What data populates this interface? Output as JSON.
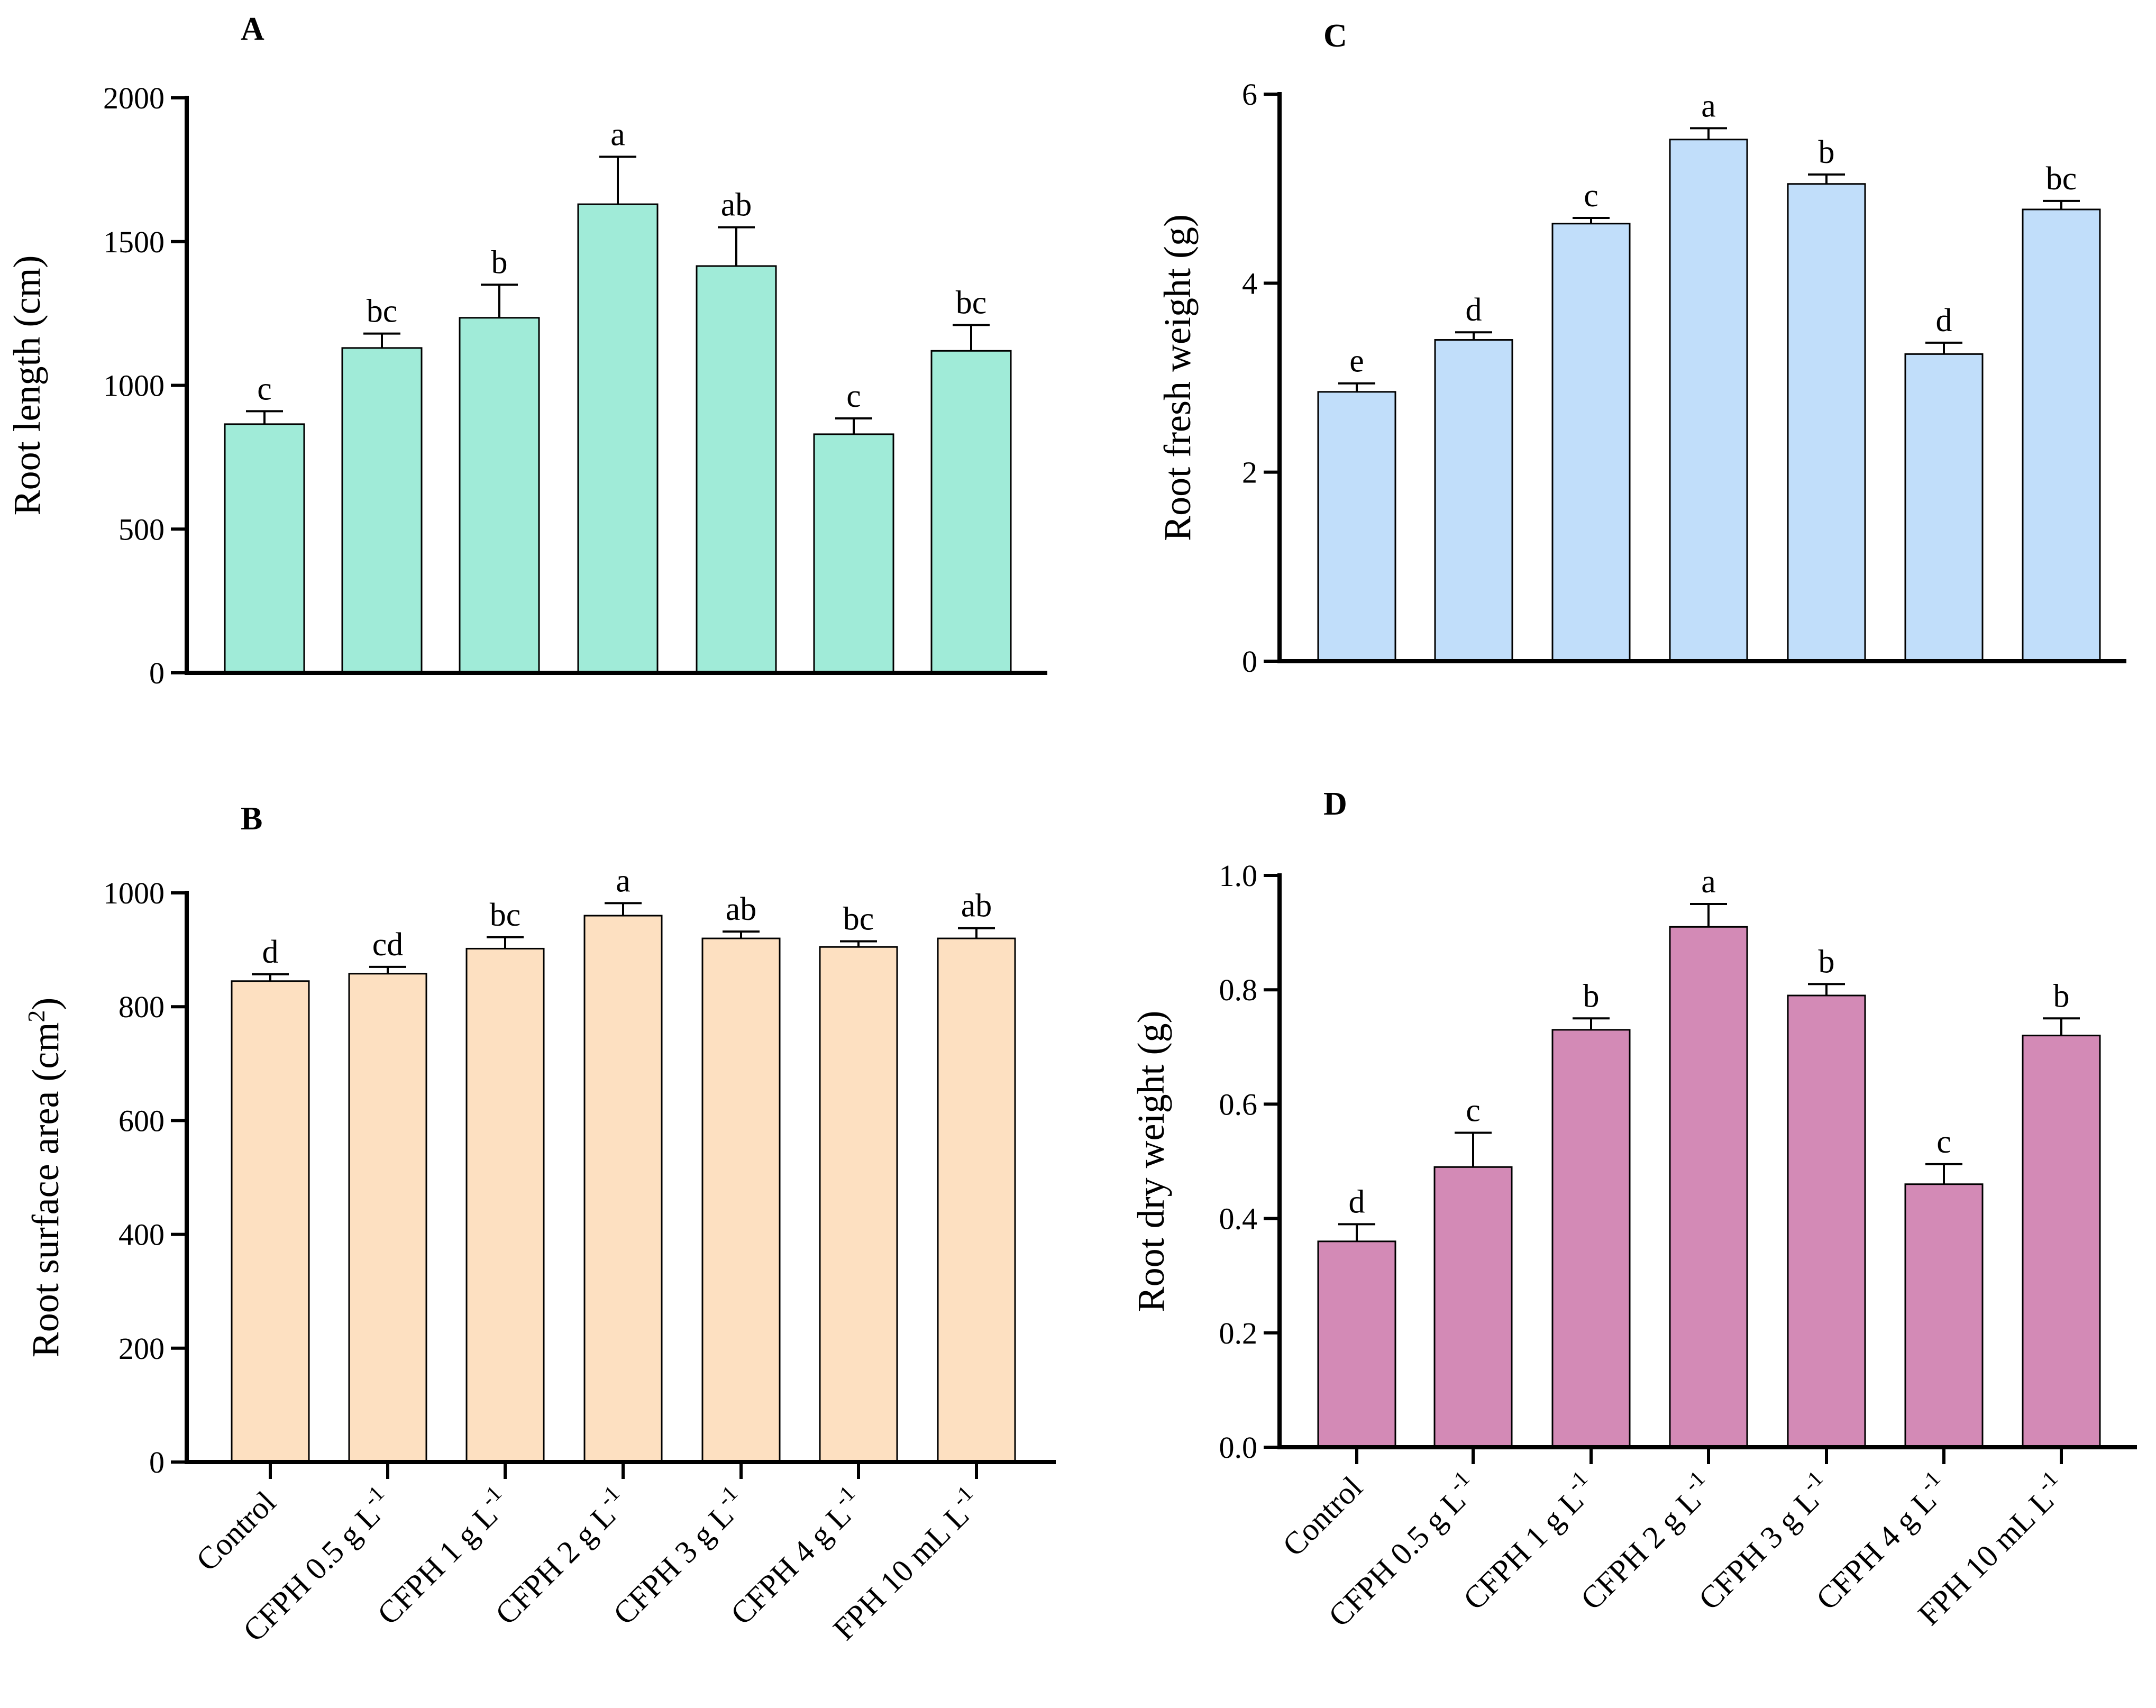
{
  "chart_data": [
    {
      "id": "A",
      "panel": "A",
      "type": "bar",
      "ylabel": "Root length (cm)",
      "ylim": [
        0,
        2000
      ],
      "yticks": [
        "0",
        "500",
        "1000",
        "1500",
        "2000"
      ],
      "color": "#a0ebd8",
      "categories": [
        "Control",
        "CFPH 0.5 g L",
        "CFPH 1 g L",
        "CFPH 2 g L",
        "CFPH 3 g L",
        "CFPH 4 g L",
        "FPH 10 mL L"
      ],
      "values": [
        865,
        1130,
        1235,
        1630,
        1415,
        830,
        1120
      ],
      "errors": [
        45,
        50,
        115,
        165,
        135,
        55,
        90
      ],
      "letters": [
        "c",
        "bc",
        "b",
        "a",
        "ab",
        "c",
        "bc"
      ],
      "show_xlabels": false
    },
    {
      "id": "B",
      "panel": "B",
      "type": "bar",
      "ylabel": "Root surface area (cm",
      "ylabel_sup": "2",
      "ylabel_close": ")",
      "ylim": [
        0,
        1000
      ],
      "yticks": [
        "0",
        "200",
        "400",
        "600",
        "800",
        "1000"
      ],
      "color": "#fde0c1",
      "categories": [
        "Control",
        "CFPH 0.5 g L",
        "CFPH 1 g L",
        "CFPH 2 g L",
        "CFPH 3 g L",
        "CFPH 4 g L",
        "FPH 10 mL L"
      ],
      "values": [
        845,
        858,
        902,
        960,
        920,
        905,
        920
      ],
      "errors": [
        12,
        12,
        20,
        22,
        12,
        10,
        18
      ],
      "letters": [
        "d",
        "cd",
        "bc",
        "a",
        "ab",
        "bc",
        "ab"
      ],
      "show_xlabels": true
    },
    {
      "id": "C",
      "panel": "C",
      "type": "bar",
      "ylabel": "Root fresh weight (g)",
      "ylim": [
        0,
        6
      ],
      "yticks": [
        "0",
        "2",
        "4",
        "6"
      ],
      "color": "#c1defa",
      "categories": [
        "Control",
        "CFPH 0.5 g L",
        "CFPH 1 g L",
        "CFPH 2 g L",
        "CFPH 3 g L",
        "CFPH 4 g L",
        "FPH 10 mL L"
      ],
      "values": [
        2.85,
        3.4,
        4.63,
        5.52,
        5.05,
        3.25,
        4.78
      ],
      "errors": [
        0.09,
        0.08,
        0.06,
        0.12,
        0.1,
        0.12,
        0.09
      ],
      "letters": [
        "e",
        "d",
        "c",
        "a",
        "b",
        "d",
        "bc"
      ],
      "show_xlabels": false
    },
    {
      "id": "D",
      "panel": "D",
      "type": "bar",
      "ylabel": "Root dry weight (g)",
      "ylim": [
        0,
        1.0
      ],
      "yticks": [
        "0.0",
        "0.2",
        "0.4",
        "0.6",
        "0.8",
        "1.0"
      ],
      "color": "#d38ab6",
      "categories": [
        "Control",
        "CFPH 0.5 g L",
        "CFPH 1 g L",
        "CFPH 2 g L",
        "CFPH 3 g L",
        "CFPH 4 g L",
        "FPH 10 mL L"
      ],
      "values": [
        0.36,
        0.49,
        0.73,
        0.91,
        0.79,
        0.46,
        0.72
      ],
      "errors": [
        0.03,
        0.06,
        0.02,
        0.04,
        0.02,
        0.035,
        0.03
      ],
      "letters": [
        "d",
        "c",
        "b",
        "a",
        "b",
        "c",
        "b"
      ],
      "show_xlabels": true
    }
  ],
  "unit_exponent": "-1"
}
